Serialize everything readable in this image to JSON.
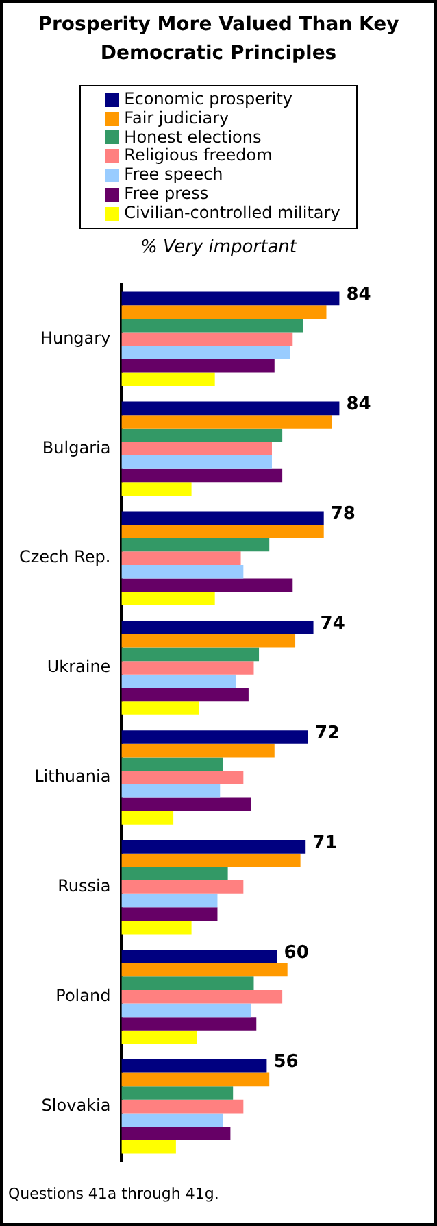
{
  "chart_data": {
    "type": "bar",
    "orientation": "horizontal",
    "title": "Prosperity More Valued Than Key Democratic Principles",
    "subtitle": "% Very important",
    "legend": "top",
    "categories": [
      "Hungary",
      "Bulgaria",
      "Czech Rep.",
      "Ukraine",
      "Lithuania",
      "Russia",
      "Poland",
      "Slovakia"
    ],
    "series": [
      {
        "name": "Economic prosperity",
        "color": "#000080",
        "values": [
          84,
          84,
          78,
          74,
          72,
          71,
          60,
          56
        ],
        "value_labels": [
          "84",
          "84",
          "78",
          "74",
          "72",
          "71",
          "60",
          "56"
        ]
      },
      {
        "name": "Fair judiciary",
        "color": "#ff9900",
        "values": [
          79,
          81,
          78,
          67,
          59,
          69,
          64,
          57
        ]
      },
      {
        "name": "Honest elections",
        "color": "#339966",
        "values": [
          70,
          62,
          57,
          53,
          39,
          41,
          51,
          43
        ]
      },
      {
        "name": "Religious freedom",
        "color": "#ff8080",
        "values": [
          66,
          58,
          46,
          51,
          47,
          47,
          62,
          47
        ]
      },
      {
        "name": "Free speech",
        "color": "#99ccff",
        "values": [
          65,
          58,
          47,
          44,
          38,
          37,
          50,
          39
        ]
      },
      {
        "name": "Free press",
        "color": "#660066",
        "values": [
          59,
          62,
          66,
          49,
          50,
          37,
          52,
          42
        ]
      },
      {
        "name": "Civilian-controlled military",
        "color": "#ffff00",
        "values": [
          36,
          27,
          36,
          30,
          20,
          27,
          29,
          21
        ]
      }
    ],
    "annotations": [
      "Questions 41a through 41g."
    ]
  }
}
